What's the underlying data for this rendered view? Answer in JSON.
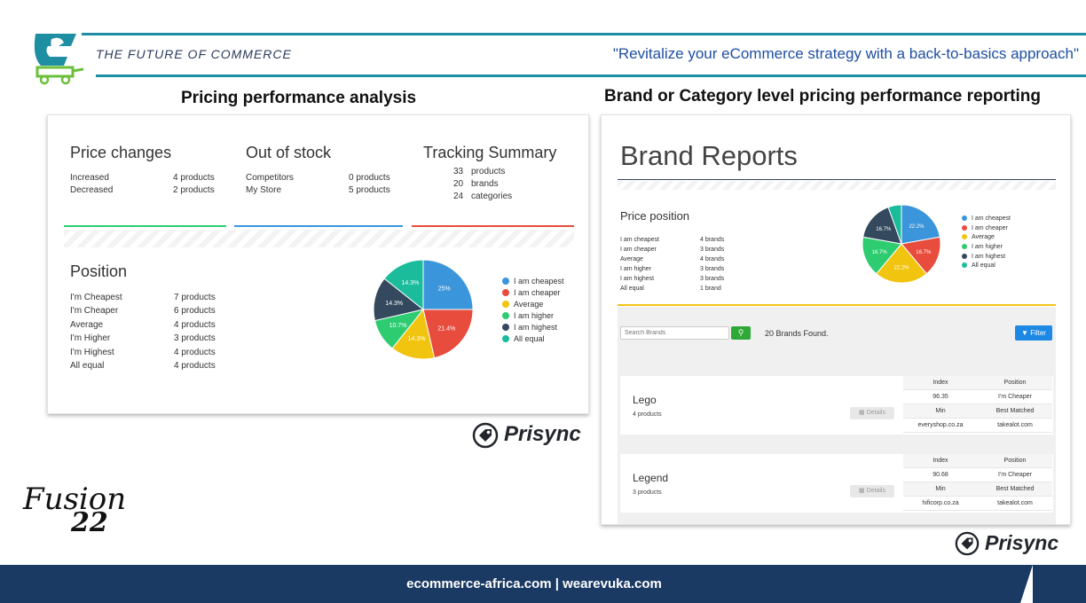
{
  "header": {
    "tagline": "THE FUTURE OF COMMERCE",
    "quote": "\"Revitalize your eCommerce strategy with a back-to-basics approach\"",
    "colors": {
      "accent": "#1e8fa3",
      "cart": "#6bbf3b"
    }
  },
  "sections": {
    "left_title": "Pricing performance analysis",
    "right_title": "Brand or Category level pricing performance reporting"
  },
  "dashboard": {
    "price_changes": {
      "title": "Price changes",
      "rows": [
        {
          "label": "Increased",
          "value": "4 products"
        },
        {
          "label": "Decreased",
          "value": "2 products"
        }
      ]
    },
    "out_of_stock": {
      "title": "Out of stock",
      "rows": [
        {
          "label": "Competitors",
          "value": "0 products"
        },
        {
          "label": "My Store",
          "value": "5 products"
        }
      ]
    },
    "tracking": {
      "title": "Tracking Summary",
      "rows": [
        {
          "num": "33",
          "label": "products"
        },
        {
          "num": "20",
          "label": "brands"
        },
        {
          "num": "24",
          "label": "categories"
        }
      ]
    },
    "position": {
      "title": "Position",
      "rows": [
        {
          "label": "I'm Cheapest",
          "value": "7 products"
        },
        {
          "label": "I'm Cheaper",
          "value": "6 products"
        },
        {
          "label": "Average",
          "value": "4 products"
        },
        {
          "label": "I'm Higher",
          "value": "3 products"
        },
        {
          "label": "I'm Highest",
          "value": "4 products"
        },
        {
          "label": "All equal",
          "value": "4 products"
        }
      ]
    }
  },
  "chart_data": [
    {
      "type": "pie",
      "categories": [
        "I am cheapest",
        "I am cheaper",
        "Average",
        "I am higher",
        "I am highest",
        "All equal"
      ],
      "values": [
        25,
        21.4,
        14.3,
        10.7,
        14.3,
        14.3
      ],
      "labels": [
        "25%",
        "21.4%",
        "14.3%",
        "10.7%",
        "14.3%",
        "14.3%"
      ],
      "colors": [
        "#3b95db",
        "#e74c3c",
        "#f1c40f",
        "#2ecc71",
        "#34495e",
        "#1abc9c"
      ],
      "legend": "right"
    },
    {
      "type": "pie",
      "categories": [
        "I am cheapest",
        "I am cheaper",
        "Average",
        "I am higher",
        "I am highest",
        "All equal"
      ],
      "values": [
        22.2,
        16.7,
        22.2,
        16.7,
        16.7,
        5.5
      ],
      "labels": [
        "22.2%",
        "16.7%",
        "22.2%",
        "16.7%",
        "16.7%",
        ""
      ],
      "colors": [
        "#3b95db",
        "#e74c3c",
        "#f1c40f",
        "#2ecc71",
        "#34495e",
        "#1abc9c"
      ],
      "legend": "right"
    }
  ],
  "brand_reports": {
    "title": "Brand Reports",
    "price_position": {
      "title": "Price position",
      "rows": [
        {
          "label": "I am cheapest",
          "value": "4 brands"
        },
        {
          "label": "I am cheaper",
          "value": "3 brands"
        },
        {
          "label": "Average",
          "value": "4 brands"
        },
        {
          "label": "I am higher",
          "value": "3 brands"
        },
        {
          "label": "I am highest",
          "value": "3 brands"
        },
        {
          "label": "All equal",
          "value": "1 brand"
        }
      ]
    },
    "search_placeholder": "Search Brands",
    "found_text": "20 Brands Found.",
    "filter_label": "Filter",
    "details_label": "Details",
    "brands": [
      {
        "name": "Lego",
        "count": "4 products",
        "table": {
          "h1": "Index",
          "h2": "Position",
          "v1": "96.35",
          "v2": "I'm Cheaper",
          "h3": "Min",
          "h4": "Best Matched",
          "v3": "everyshop.co.za",
          "v4": "takealot.com"
        }
      },
      {
        "name": "Legend",
        "count": "3 products",
        "table": {
          "h1": "Index",
          "h2": "Position",
          "v1": "90.68",
          "v2": "I'm Cheaper",
          "h3": "Min",
          "h4": "Best Matched",
          "v3": "hificorp.co.za",
          "v4": "takealot.com"
        }
      }
    ]
  },
  "branding": {
    "prisync": "Prisync",
    "fusion": "Fusion",
    "fusion_number": "22"
  },
  "footer": {
    "text": "ecommerce-africa.com | wearevuka.com"
  }
}
